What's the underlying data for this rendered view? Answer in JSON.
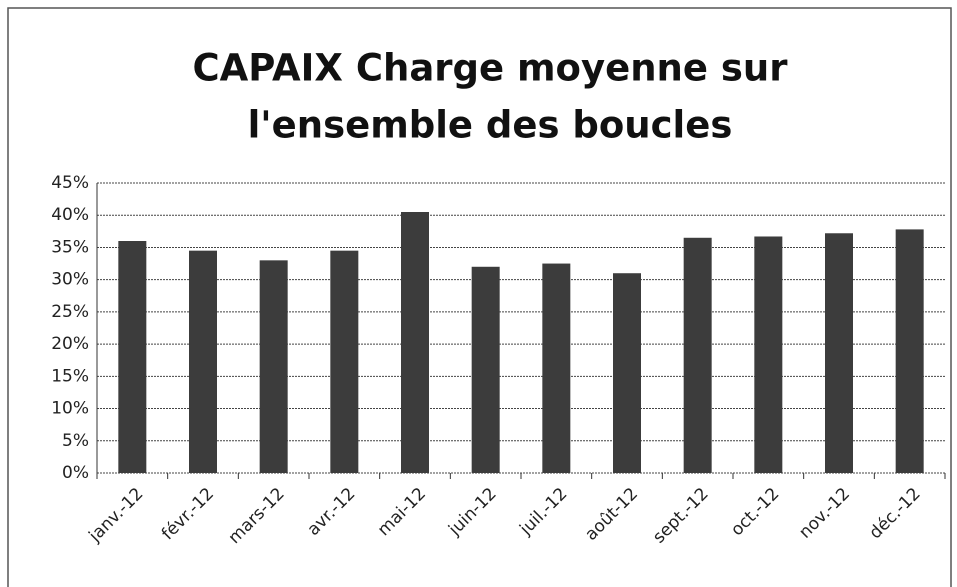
{
  "chart_data": {
    "type": "bar",
    "title": [
      "CAPAIX Charge moyenne sur",
      "l'ensemble des boucles"
    ],
    "categories": [
      "janv.-12",
      "févr.-12",
      "mars-12",
      "avr.-12",
      "mai-12",
      "juin-12",
      "juil.-12",
      "août-12",
      "sept.-12",
      "oct.-12",
      "nov.-12",
      "déc.-12"
    ],
    "values": [
      36,
      34.5,
      33,
      34.5,
      40.5,
      32,
      32.5,
      31,
      36.5,
      36.7,
      37.2,
      37.8
    ],
    "color": "#3c3c3c",
    "ylim": [
      0,
      45
    ],
    "yticks": [
      {
        "value": 0,
        "label": "0%"
      },
      {
        "value": 5,
        "label": "5%"
      },
      {
        "value": 10,
        "label": "10%"
      },
      {
        "value": 15,
        "label": "15%"
      },
      {
        "value": 20,
        "label": "20%"
      },
      {
        "value": 25,
        "label": "25%"
      },
      {
        "value": 30,
        "label": "30%"
      },
      {
        "value": 35,
        "label": "35%"
      },
      {
        "value": 40,
        "label": "40%"
      },
      {
        "value": 45,
        "label": "45%"
      }
    ],
    "grid": true
  }
}
